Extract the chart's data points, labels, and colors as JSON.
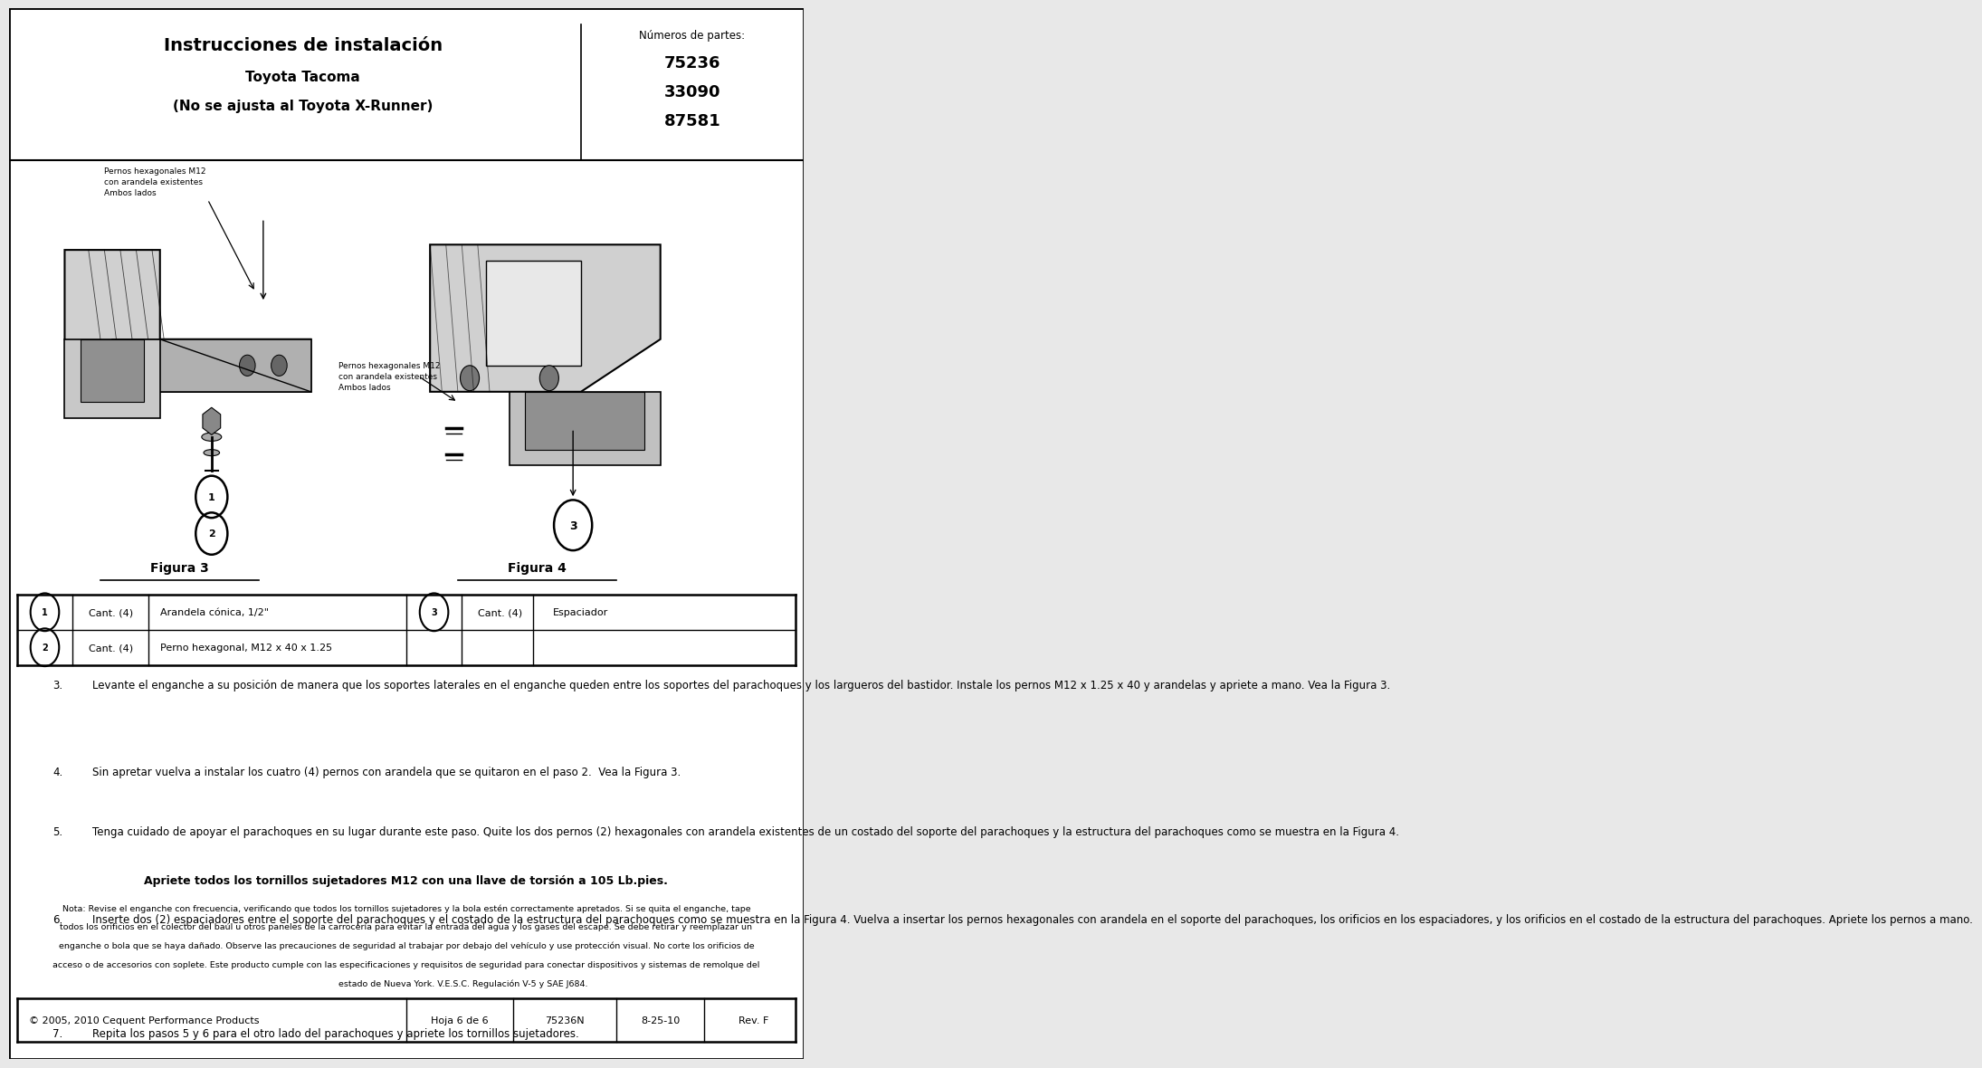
{
  "bg_color": "#ffffff",
  "page_bg": "#e8e8e8",
  "border_color": "#000000",
  "title_main": "Instrucciones de instalación",
  "title_sub1": "Toyota Tacoma",
  "title_sub2": "(No se ajusta al Toyota X-Runner)",
  "parts_label": "Números de partes:",
  "parts": [
    "75236",
    "33090",
    "87581"
  ],
  "fig3_label": "Figura 3",
  "fig4_label": "Figura 4",
  "ann1_text": "Pernos hexagonales M12\ncon arandela existentes\nAmbos lados",
  "ann2_text": "Pernos hexagonales M12\ncon arandela existentes\nAmbos lados",
  "row1_sym1": "1",
  "row1_qty1": "Cant. (4)",
  "row1_desc1": "Arandela cónica, 1/2\"",
  "row1_sym2": "3",
  "row1_qty2": "Cant. (4)",
  "row1_desc2": "Espaciador",
  "row2_sym1": "2",
  "row2_qty1": "Cant. (4)",
  "row2_desc1": "Perno hexagonal, M12 x 40 x 1.25",
  "step3": "Levante el enganche a su posición de manera que los soportes laterales en el enganche queden entre los soportes del parachoques y los largueros del bastidor. Instale los pernos M12 x 1.25 x 40 y arandelas y apriete a mano. Vea la Figura 3.",
  "step4": "Sin apretar vuelva a instalar los cuatro (4) pernos con arandela que se quitaron en el paso 2.  Vea la Figura 3.",
  "step5": "Tenga cuidado de apoyar el parachoques en su lugar durante este paso. Quite los dos pernos (2) hexagonales con arandela existentes de un costado del soporte del parachoques y la estructura del parachoques como se muestra en la Figura 4.",
  "step6": "Inserte dos (2) espaciadores entre el soporte del parachoques y el costado de la estructura del parachoques como se muestra en la Figura 4. Vuelva a insertar los pernos hexagonales con arandela en el soporte del parachoques, los orificios en los espaciadores, y los orificios en el costado de la estructura del parachoques. Apriete los pernos a mano.",
  "step7": "Repita los pasos 5 y 6 para el otro lado del parachoques y apriete los tornillos sujetadores.",
  "torque_text": "Apriete todos los tornillos sujetadores M12 con una llave de torsión a 105 Lb.pies.",
  "note_text": "Nota: Revise el enganche con frecuencia, verificando que todos los tornillos sujetadores y la bola estén correctamente apretados. Si se quita el enganche, tape todos los orificios en el colector del baúl u otros paneles de la carrocería para evitar la entrada del agua y los gases del escape. Se debe retirar y reemplazar un enganche o bola que se haya dañado. Observe las precauciones de seguridad al trabajar por debajo del vehículo y use protección visual. No corte los orificios de acceso o de accesorios con soplete. Este producto cumple con las especificaciones y requisitos de seguridad para conectar dispositivos y sistemas de remolque del estado de Nueva York. V.E.S.C. Regulación V-5 y SAE J684.",
  "footer_copy": "© 2005, 2010 Cequent Performance Products",
  "footer_sheet": "Hoja 6 de 6",
  "footer_part": "75236N",
  "footer_date": "8-25-10",
  "footer_rev": "Rev. F"
}
